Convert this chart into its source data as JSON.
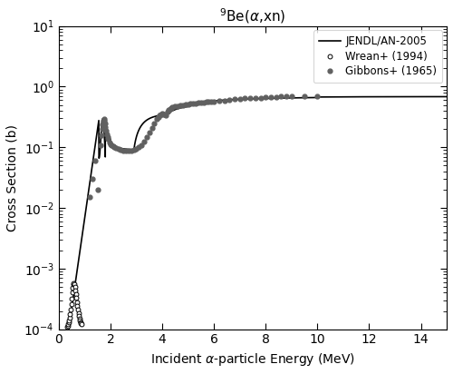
{
  "title": "$^{9}$Be($\\alpha$,xn)",
  "xlabel": "Incident $\\alpha$-particle Energy (MeV)",
  "ylabel": "Cross Section (b)",
  "xlim": [
    0,
    15
  ],
  "ylim": [
    0.0001,
    10
  ],
  "xticks": [
    0,
    2,
    4,
    6,
    8,
    10,
    12,
    14
  ],
  "legend_labels": [
    "JENDL/AN-2005",
    "Wrean+ (1994)",
    "Gibbons+ (1965)"
  ],
  "gibbons_x": [
    1.2,
    1.3,
    1.4,
    1.5,
    1.6,
    1.65,
    1.68,
    1.7,
    1.72,
    1.74,
    1.76,
    1.78,
    1.8,
    1.82,
    1.85,
    1.88,
    1.9,
    1.95,
    2.0,
    2.05,
    2.1,
    2.15,
    2.2,
    2.3,
    2.4,
    2.5,
    2.6,
    2.7,
    2.8,
    2.9,
    3.0,
    3.1,
    3.2,
    3.3,
    3.4,
    3.5,
    3.6,
    3.7,
    3.8,
    3.85,
    3.9,
    3.95,
    4.0,
    4.05,
    4.1,
    4.15,
    4.2,
    4.25,
    4.3,
    4.35,
    4.4,
    4.5,
    4.6,
    4.7,
    4.8,
    4.9,
    5.0,
    5.1,
    5.2,
    5.3,
    5.4,
    5.5,
    5.6,
    5.7,
    5.8,
    5.9,
    6.0,
    6.2,
    6.4,
    6.6,
    6.8,
    7.0,
    7.2,
    7.4,
    7.6,
    7.8,
    8.0,
    8.2,
    8.4,
    8.6,
    8.8,
    9.0,
    9.5,
    10.0
  ],
  "gibbons_y": [
    0.015,
    0.03,
    0.06,
    0.02,
    0.11,
    0.16,
    0.2,
    0.24,
    0.27,
    0.29,
    0.275,
    0.25,
    0.215,
    0.19,
    0.165,
    0.148,
    0.138,
    0.12,
    0.112,
    0.108,
    0.103,
    0.1,
    0.097,
    0.093,
    0.09,
    0.089,
    0.088,
    0.088,
    0.088,
    0.09,
    0.095,
    0.1,
    0.11,
    0.125,
    0.145,
    0.175,
    0.21,
    0.25,
    0.295,
    0.32,
    0.34,
    0.355,
    0.36,
    0.355,
    0.345,
    0.34,
    0.39,
    0.41,
    0.43,
    0.445,
    0.455,
    0.47,
    0.48,
    0.49,
    0.5,
    0.51,
    0.515,
    0.525,
    0.53,
    0.535,
    0.54,
    0.545,
    0.555,
    0.56,
    0.565,
    0.57,
    0.575,
    0.585,
    0.595,
    0.61,
    0.62,
    0.63,
    0.64,
    0.65,
    0.655,
    0.66,
    0.665,
    0.675,
    0.68,
    0.685,
    0.69,
    0.695,
    0.7,
    0.7
  ],
  "wrean_x": [
    0.32,
    0.34,
    0.36,
    0.38,
    0.4,
    0.42,
    0.44,
    0.46,
    0.48,
    0.5,
    0.52,
    0.54,
    0.56,
    0.58,
    0.6,
    0.62,
    0.64,
    0.66,
    0.68,
    0.7,
    0.72,
    0.74,
    0.76,
    0.78,
    0.8,
    0.82,
    0.84,
    0.86,
    0.88
  ],
  "wrean_y": [
    0.00011,
    0.000115,
    0.00012,
    0.00013,
    0.00014,
    0.000155,
    0.000175,
    0.00021,
    0.00026,
    0.00032,
    0.0004,
    0.00048,
    0.00055,
    0.00058,
    0.00055,
    0.0005,
    0.00044,
    0.00038,
    0.00033,
    0.00028,
    0.00024,
    0.00021,
    0.000185,
    0.000165,
    0.00015,
    0.00014,
    0.00013,
    0.000125,
    0.00012
  ]
}
